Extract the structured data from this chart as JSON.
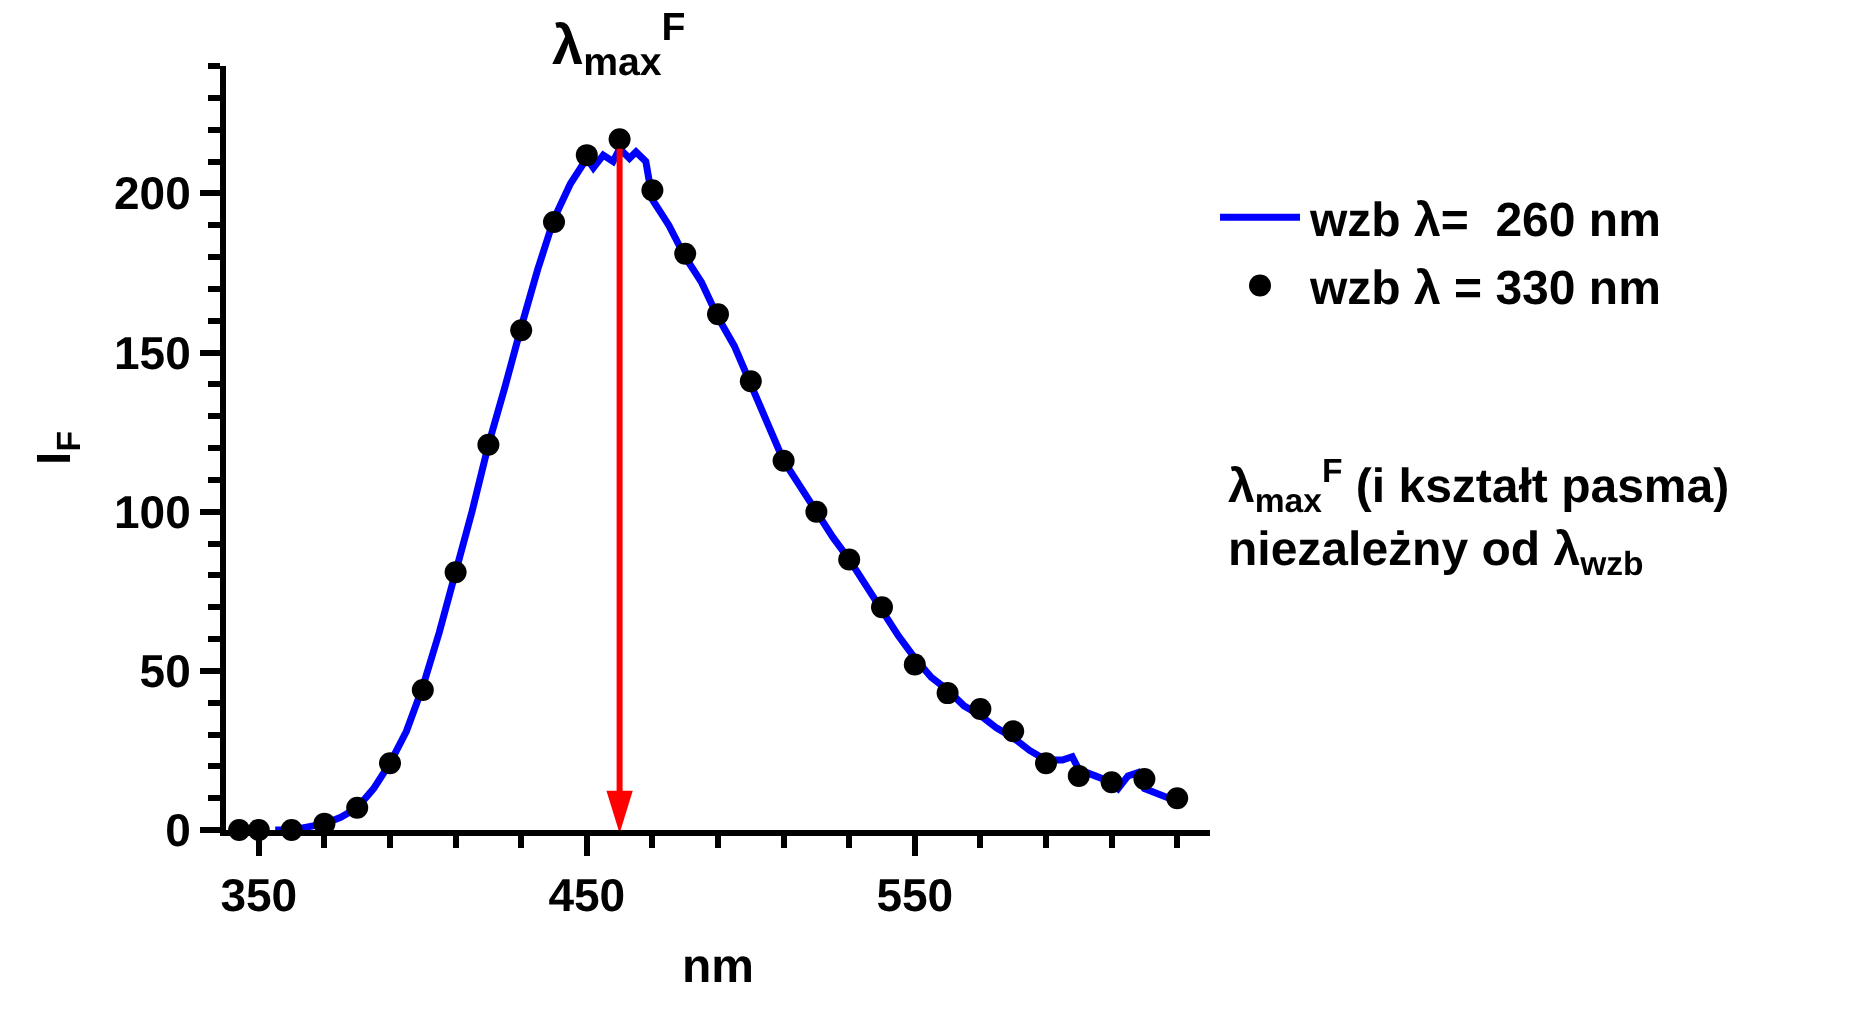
{
  "chart_data": {
    "type": "line",
    "xlabel": "nm",
    "ylabel": "I$_{F}$",
    "xlim": [
      340,
      640
    ],
    "xticks": [
      350,
      450,
      550
    ],
    "ylim": [
      0,
      240
    ],
    "yticks": [
      0,
      50,
      100,
      150,
      200
    ],
    "legend": "right",
    "series": [
      {
        "name": "wzb λ=  260 nm",
        "color": "#0000ff",
        "marker": "none",
        "line_style": "solid",
        "x": [
          355,
          360,
          365,
          370,
          375,
          380,
          385,
          390,
          395,
          400,
          405,
          410,
          415,
          420,
          425,
          430,
          435,
          440,
          445,
          450,
          452,
          455,
          458,
          460,
          463,
          465,
          468,
          470,
          475,
          480,
          485,
          490,
          495,
          500,
          505,
          510,
          515,
          520,
          525,
          530,
          535,
          540,
          545,
          550,
          555,
          560,
          565,
          570,
          575,
          580,
          585,
          590,
          595,
          598,
          600,
          605,
          610,
          612,
          615,
          618,
          620,
          625,
          630
        ],
        "values": [
          0,
          0,
          1,
          2,
          4,
          7,
          13,
          21,
          31,
          45,
          62,
          81,
          100,
          121,
          139,
          158,
          176,
          192,
          203,
          211,
          208,
          212,
          210,
          214,
          211,
          213,
          210,
          198,
          190,
          180,
          172,
          161,
          152,
          140,
          128,
          116,
          108,
          100,
          92,
          85,
          77,
          69,
          61,
          54,
          48,
          44,
          39,
          36,
          32,
          29,
          25,
          22,
          22,
          23,
          19,
          17,
          15,
          13,
          17,
          18,
          13,
          11,
          9
        ]
      },
      {
        "name": "wzb λ = 330 nm",
        "type": "scatter",
        "color": "#000000",
        "marker": "circle",
        "x": [
          344,
          350,
          360,
          370,
          380,
          390,
          400,
          410,
          420,
          430,
          440,
          450,
          460,
          470,
          480,
          490,
          500,
          510,
          520,
          530,
          540,
          550,
          560,
          570,
          580,
          590,
          600,
          610,
          620,
          630
        ],
        "values": [
          0,
          0,
          0,
          2,
          7,
          21,
          44,
          81,
          121,
          157,
          191,
          212,
          217,
          201,
          181,
          162,
          141,
          116,
          100,
          85,
          70,
          52,
          43,
          38,
          31,
          21,
          17,
          15,
          16,
          10
        ]
      }
    ],
    "ref_lines": [
      {
        "axis": "x",
        "value": 460,
        "label": "λ$_{max}$$^{F}$",
        "color": "#ff0000"
      }
    ],
    "annotations": [
      "λ$_{max}$$^{F}$ (i kształt pasma)\nniezależny od λ$_{wzb}$"
    ]
  }
}
